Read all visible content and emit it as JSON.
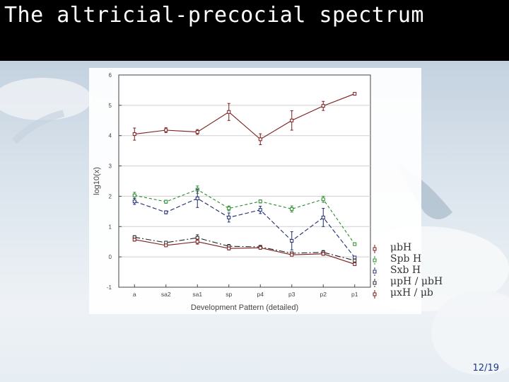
{
  "slide": {
    "title": "The altricial-precocial spectrum",
    "page": "12/19"
  },
  "chart_data": {
    "type": "line",
    "xlabel": "Development Pattern (detailed)",
    "ylabel": "log10(x)",
    "categories": [
      "a",
      "sa2",
      "sa1",
      "sp",
      "p4",
      "p3",
      "p2",
      "p1"
    ],
    "ylim": [
      -1,
      6
    ],
    "yticks": [
      -1,
      0,
      1,
      2,
      3,
      4,
      5,
      6
    ],
    "grid": true,
    "legend_position": "right",
    "series": [
      {
        "name": "μbH",
        "color": "#7a1c1c",
        "dash": "solid",
        "values": [
          4.05,
          4.18,
          4.12,
          4.78,
          3.88,
          4.5,
          4.98,
          5.38
        ],
        "errors": [
          0.2,
          0.08,
          0.08,
          0.28,
          0.18,
          0.32,
          0.15,
          0
        ]
      },
      {
        "name": "Spb H",
        "color": "#2a8a2a",
        "dash": "4,3",
        "values": [
          2.03,
          1.82,
          2.22,
          1.6,
          1.83,
          1.58,
          1.9,
          0.42
        ],
        "errors": [
          0.1,
          0.05,
          0.12,
          0.08,
          0.05,
          0.1,
          0.1,
          0
        ]
      },
      {
        "name": "Sxb H",
        "color": "#1c2a6e",
        "dash": "6,3",
        "values": [
          1.83,
          1.47,
          1.93,
          1.3,
          1.55,
          0.53,
          1.3,
          -0.02
        ],
        "errors": [
          0.1,
          0.05,
          0.3,
          0.15,
          0.12,
          0.3,
          0.3,
          0
        ]
      },
      {
        "name": "μpH / μbH",
        "color": "#222222",
        "dash": "8,3,2,3",
        "values": [
          0.65,
          0.47,
          0.63,
          0.35,
          0.33,
          0.12,
          0.15,
          -0.12
        ],
        "errors": [
          0.05,
          0.04,
          0.1,
          0.06,
          0.05,
          0.04,
          0.06,
          0
        ]
      },
      {
        "name": "μxH / μb",
        "color": "#7a1c1c",
        "dash": "solid",
        "values": [
          0.57,
          0.38,
          0.5,
          0.28,
          0.3,
          0.07,
          0.1,
          -0.24
        ],
        "errors": [
          0.05,
          0.04,
          0.08,
          0.05,
          0.05,
          0.03,
          0.05,
          0
        ]
      }
    ]
  }
}
